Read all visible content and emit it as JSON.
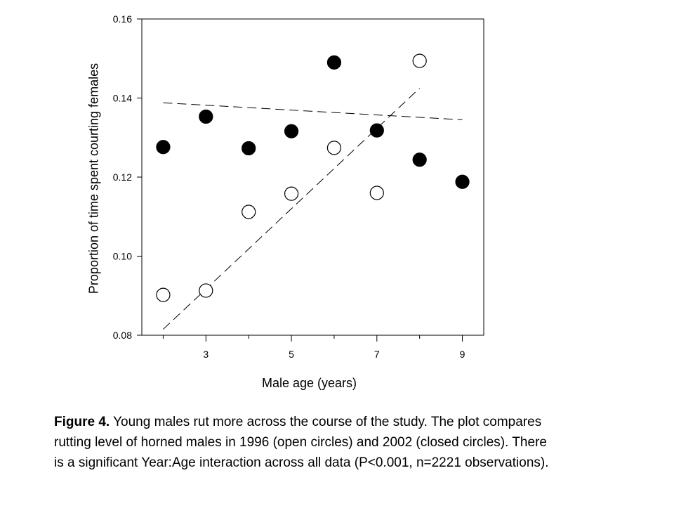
{
  "chart_data": {
    "type": "scatter",
    "xlabel": "Male age (years)",
    "ylabel": "Proportion of time spent courting females",
    "xlim": [
      1.5,
      9.5
    ],
    "ylim": [
      0.08,
      0.16
    ],
    "xticks": [
      3,
      5,
      7,
      9
    ],
    "xminor": [
      2,
      4,
      6,
      8
    ],
    "yticks": [
      0.08,
      0.1,
      0.12,
      0.14,
      0.16
    ],
    "ytick_labels": [
      "0.08",
      "0.10",
      "0.12",
      "0.14",
      "0.16"
    ],
    "grid": false,
    "legend": "none",
    "series": [
      {
        "marker": "open-circle",
        "x": [
          2,
          3,
          4,
          5,
          6,
          7,
          8
        ],
        "y": [
          0.0902,
          0.0913,
          0.1112,
          0.1158,
          0.1274,
          0.116,
          0.1494
        ],
        "trend": {
          "x": [
            2,
            8
          ],
          "y": [
            0.0815,
            0.1425
          ]
        }
      },
      {
        "marker": "closed-circle",
        "x": [
          2,
          3,
          4,
          5,
          6,
          7,
          8,
          9
        ],
        "y": [
          0.1276,
          0.1353,
          0.1273,
          0.1316,
          0.149,
          0.1318,
          0.1244,
          0.1188
        ],
        "trend": {
          "x": [
            2,
            9
          ],
          "y": [
            0.1388,
            0.1345
          ]
        }
      }
    ]
  },
  "caption": {
    "label": "Figure 4.",
    "text": " Young males rut more across the course of the study. The plot compares rutting level of horned males in 1996 (open circles) and 2002 (closed circles). There is a significant Year:Age interaction across all data (P<0.001, n=2221 observations)."
  }
}
